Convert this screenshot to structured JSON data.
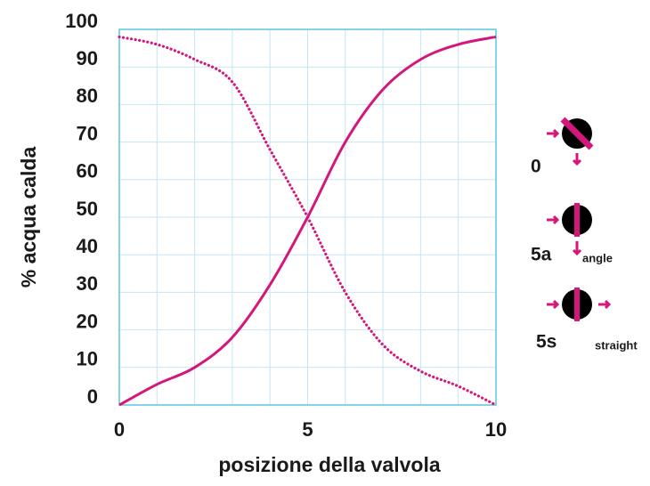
{
  "chart_data": {
    "type": "line",
    "x_label": "posizione della valvola",
    "y_label": "% acqua calda",
    "x": [
      0,
      1,
      2,
      3,
      4,
      5,
      6,
      7,
      8,
      9,
      10
    ],
    "series": [
      {
        "color": "#d4177a",
        "style": "solid",
        "values": [
          0,
          5.5,
          10,
          18,
          32,
          50,
          70,
          84,
          92,
          96,
          98
        ]
      },
      {
        "color": "#d4177a",
        "style": "dotted",
        "values": [
          98,
          96,
          92,
          86,
          68,
          50,
          30,
          16,
          9,
          5,
          0
        ]
      }
    ],
    "xlim": [
      0,
      10
    ],
    "xticks": [
      0,
      5,
      10
    ],
    "x_grid": [
      0,
      1,
      2,
      3,
      4,
      5,
      6,
      7,
      8,
      9,
      10
    ],
    "ylim": [
      0,
      100
    ],
    "yticks": [
      0,
      10,
      20,
      30,
      40,
      50,
      60,
      70,
      80,
      90,
      100
    ],
    "grid": true,
    "grid_color": "#c3e7f3",
    "frame_color": "#5cc6e0",
    "valve_labels": [
      "0",
      "5a",
      "angle",
      "5s",
      "straight"
    ]
  }
}
